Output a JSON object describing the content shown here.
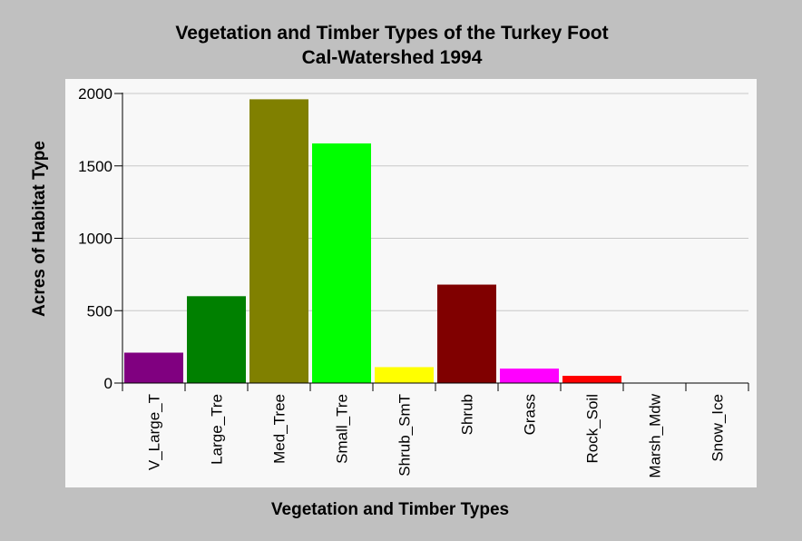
{
  "chart_data": {
    "type": "bar",
    "title": "Vegetation and Timber Types of the Turkey Foot",
    "subtitle": "Cal-Watershed 1994",
    "xlabel": "Vegetation and Timber Types",
    "ylabel": "Acres of Habitat Type",
    "ylim": [
      0,
      2000
    ],
    "yticks": [
      0,
      500,
      1000,
      1500,
      2000
    ],
    "grid": true,
    "categories": [
      "V_Large_T",
      "Large_Tre",
      "Med_Tree",
      "Small_Tre",
      "Shrub_SmT",
      "Shrub",
      "Grass",
      "Rock_Soil",
      "Marsh_Mdw",
      "Snow_Ice"
    ],
    "values": [
      210,
      600,
      1960,
      1655,
      110,
      680,
      100,
      50,
      0,
      0
    ],
    "colors": [
      "#800080",
      "#008000",
      "#808000",
      "#00ff00",
      "#ffff00",
      "#800000",
      "#ff00ff",
      "#ff0000",
      "#000000",
      "#000000"
    ],
    "plot_background": "#f8f8f8",
    "page_background": "#c0c0c0"
  }
}
